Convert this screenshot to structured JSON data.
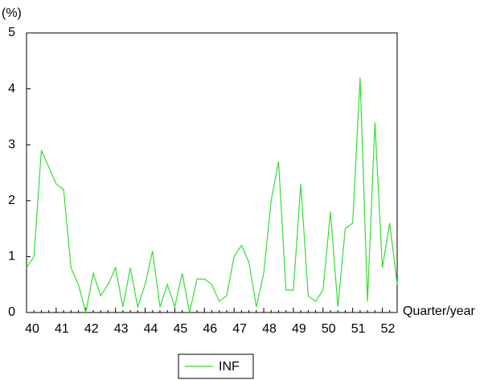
{
  "chart_data": {
    "type": "line",
    "y_label": "(%)",
    "x_label": "Quarter/year",
    "categories": [
      "40",
      null,
      null,
      null,
      "41",
      null,
      null,
      null,
      "42",
      null,
      null,
      null,
      "43",
      null,
      null,
      null,
      "44",
      null,
      null,
      null,
      "45",
      null,
      null,
      null,
      "46",
      null,
      null,
      null,
      "47",
      null,
      null,
      null,
      "48",
      null,
      null,
      null,
      "49",
      null,
      null,
      null,
      "50",
      null,
      null,
      null,
      "51",
      null,
      null,
      null,
      "52",
      null,
      null
    ],
    "series": [
      {
        "name": "INF",
        "color": "#33dd33",
        "values": [
          0.8,
          1.0,
          2.9,
          2.6,
          2.3,
          2.2,
          0.8,
          0.5,
          0.0,
          0.7,
          0.3,
          0.5,
          0.8,
          0.1,
          0.8,
          0.1,
          0.5,
          1.1,
          0.1,
          0.5,
          0.1,
          0.7,
          0.0,
          0.6,
          0.6,
          0.5,
          0.2,
          0.3,
          1.0,
          1.2,
          0.9,
          0.1,
          0.7,
          2.0,
          2.7,
          0.4,
          0.4,
          2.3,
          0.3,
          0.2,
          0.4,
          1.8,
          0.1,
          1.5,
          1.6,
          4.2,
          0.2,
          3.4,
          0.8,
          1.6,
          0.5
        ]
      }
    ],
    "ylim": [
      0,
      5
    ],
    "yticks": [
      0,
      1,
      2,
      3,
      4,
      5
    ]
  }
}
